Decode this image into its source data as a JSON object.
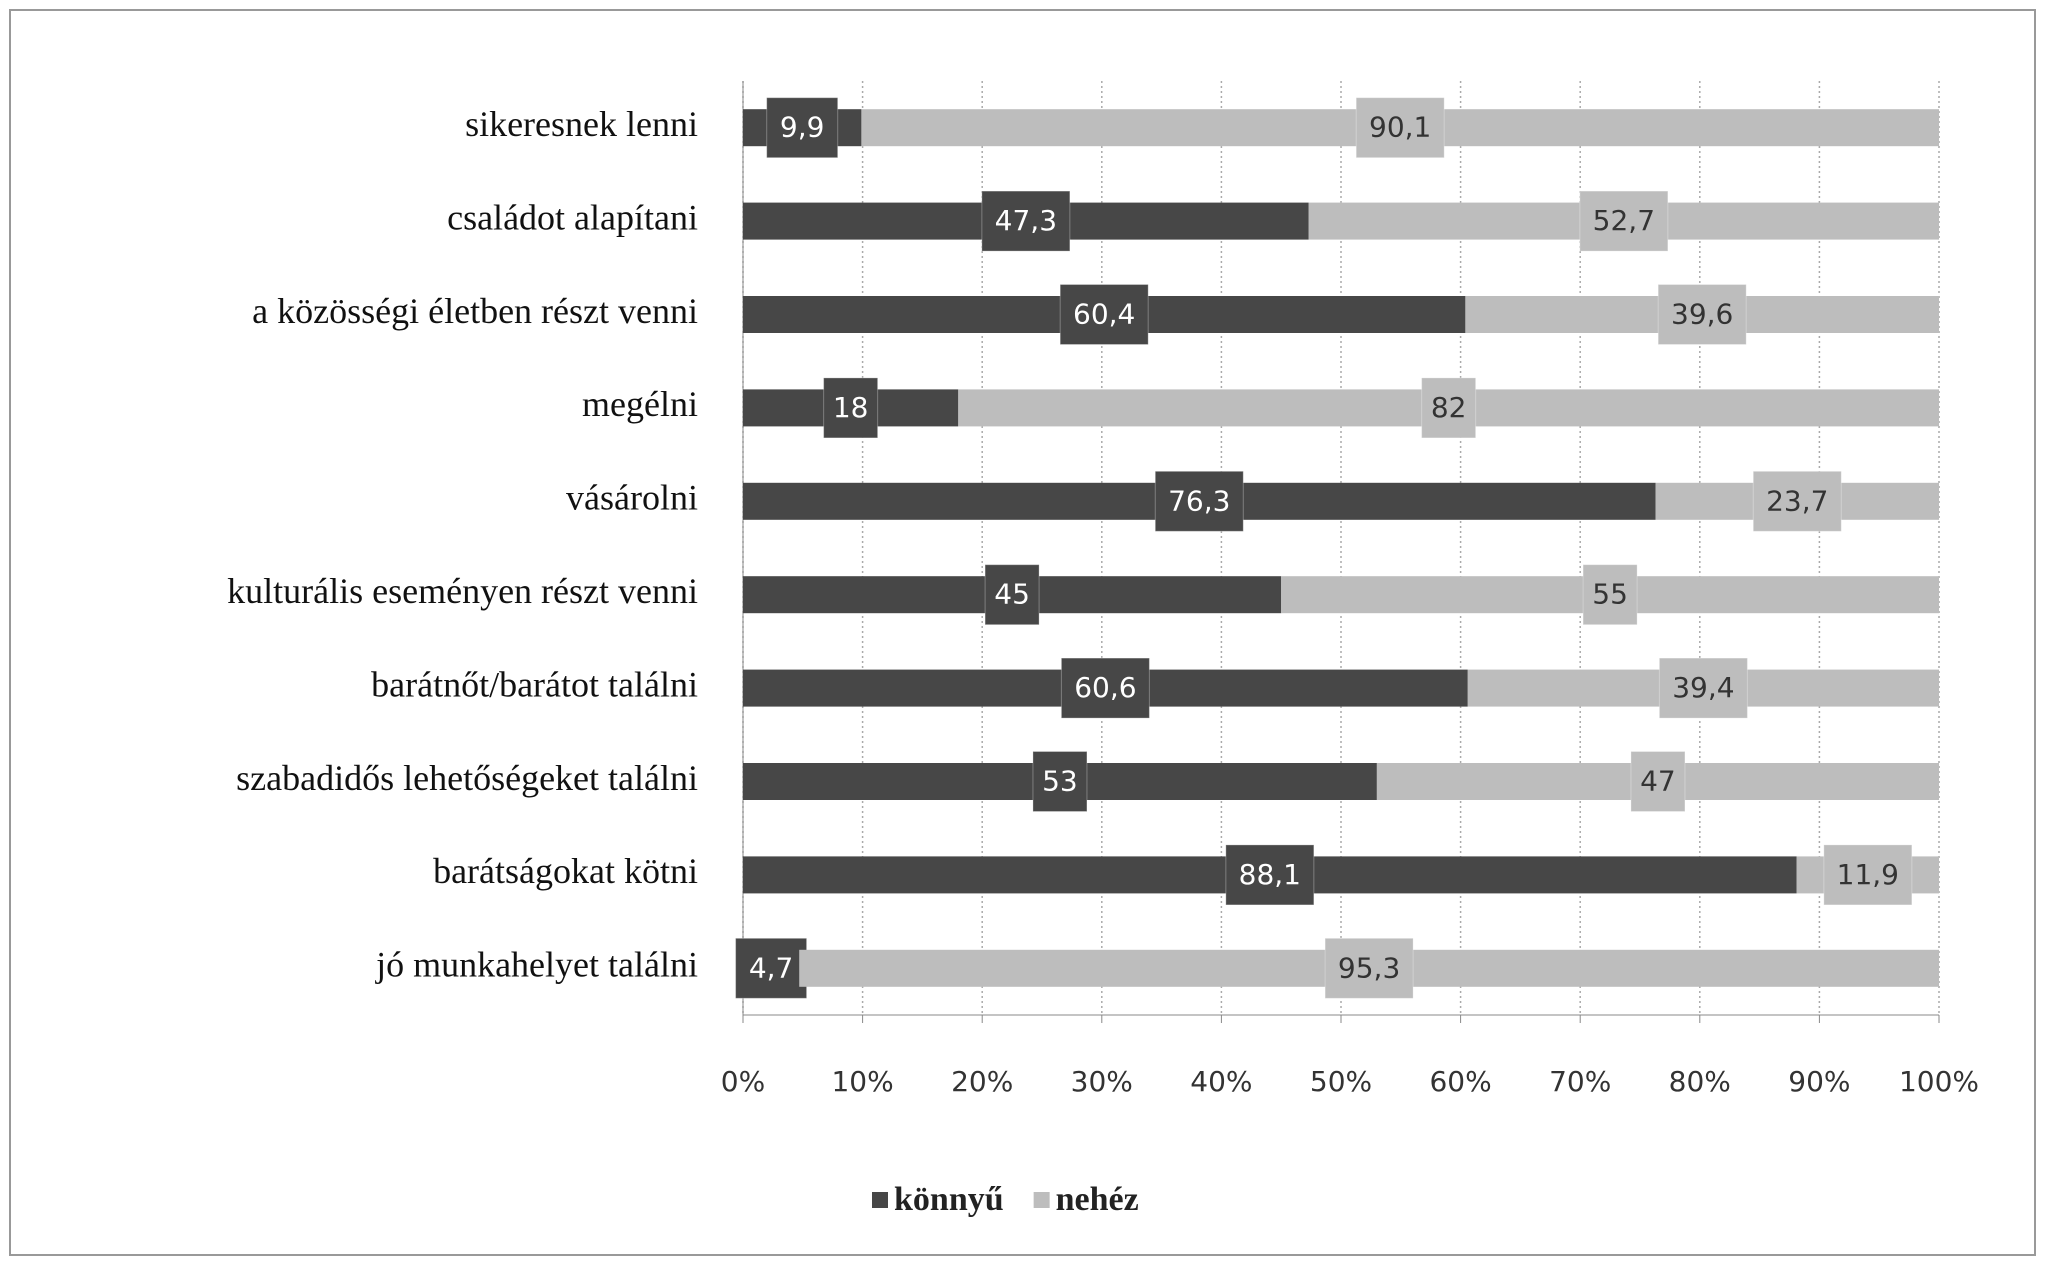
{
  "chart_data": {
    "type": "stacked-barh",
    "categories": [
      "sikeresnek lenni",
      "családot alapítani",
      "a közösségi életben részt venni",
      "megélni",
      "vásárolni",
      "kulturális eseményen részt venni",
      "barátnőt/barátot találni",
      "szabadidős lehetőségeket találni",
      "barátságokat kötni",
      "jó munkahelyet találni"
    ],
    "series": [
      {
        "name": "könnyű",
        "color": "#474747",
        "label_color": "#ffffff",
        "values": [
          9.9,
          47.3,
          60.4,
          18,
          76.3,
          45,
          60.6,
          53,
          88.1,
          4.7
        ],
        "value_labels": [
          "9,9",
          "47,3",
          "60,4",
          "18",
          "76,3",
          "45",
          "60,6",
          "53",
          "88,1",
          "4,7"
        ]
      },
      {
        "name": "nehéz",
        "color": "#bdbdbd",
        "label_color": "#333333",
        "values": [
          90.1,
          52.7,
          39.6,
          82,
          23.7,
          55,
          39.4,
          47,
          11.9,
          95.3
        ],
        "value_labels": [
          "90,1",
          "52,7",
          "39,6",
          "82",
          "23,7",
          "55",
          "39,4",
          "47",
          "11,9",
          "95,3"
        ]
      }
    ],
    "xlim": [
      0,
      100
    ],
    "xticks": [
      {
        "value": 0,
        "label": "0%"
      },
      {
        "value": 10,
        "label": "10%"
      },
      {
        "value": 20,
        "label": "20%"
      },
      {
        "value": 30,
        "label": "30%"
      },
      {
        "value": 40,
        "label": "40%"
      },
      {
        "value": 50,
        "label": "50%"
      },
      {
        "value": 60,
        "label": "60%"
      },
      {
        "value": 70,
        "label": "70%"
      },
      {
        "value": 80,
        "label": "80%"
      },
      {
        "value": 90,
        "label": "90%"
      },
      {
        "value": 100,
        "label": "100%"
      }
    ],
    "grid": true,
    "legend": "bottom"
  }
}
